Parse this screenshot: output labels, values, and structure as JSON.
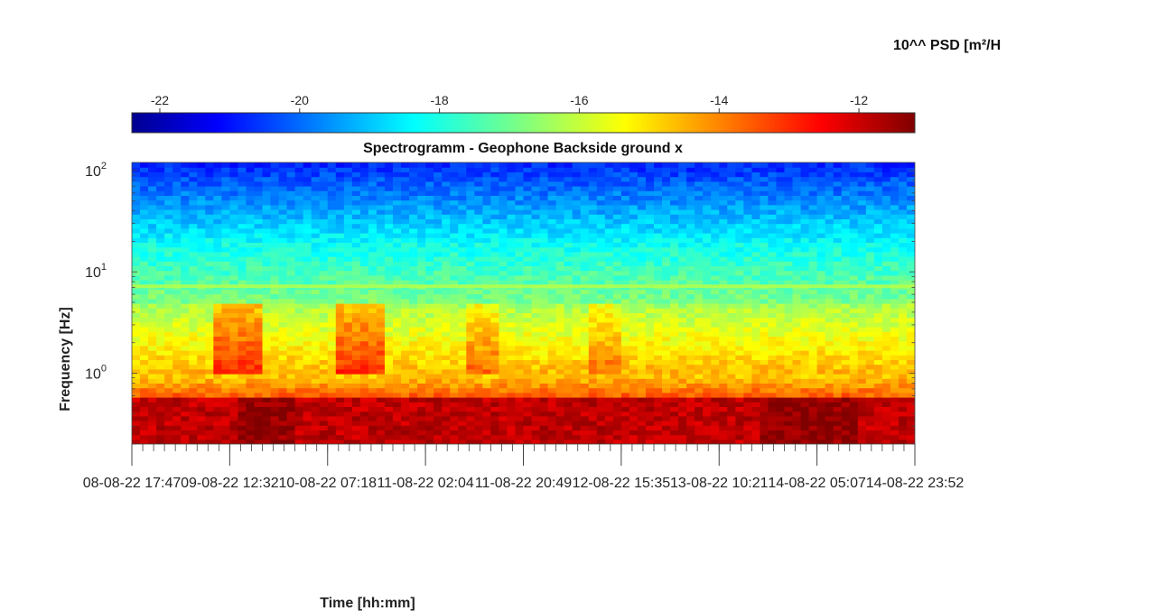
{
  "chart_data": {
    "type": "heatmap",
    "title": "Spectrogramm - Geophone Backside ground x",
    "xlabel": "Time [hh:mm]",
    "ylabel": "Frequency [Hz]",
    "y_scale": "log",
    "ylim": [
      0.2,
      120
    ],
    "y_ticks": [
      {
        "base": "10",
        "exp": "0",
        "value": 1
      },
      {
        "base": "10",
        "exp": "1",
        "value": 10
      },
      {
        "base": "10",
        "exp": "2",
        "value": 100
      }
    ],
    "x_tick_labels": [
      "08-08-22  17:47",
      "09-08-22  12:32",
      "10-08-22  07:18",
      "11-08-22  02:04",
      "11-08-22  20:49",
      "12-08-22  15:35",
      "13-08-22  10:21",
      "14-08-22  05:07",
      "14-08-22  23:52"
    ],
    "colorbar": {
      "title": "10^^ PSD [m²/H",
      "range": [
        -22.4,
        -11.2
      ],
      "ticks": [
        -22,
        -20,
        -18,
        -16,
        -14,
        -12
      ],
      "colormap": "jet"
    },
    "grid": false,
    "description_of_levels": {
      "band_0p2_to_0p6_Hz": -12,
      "band_0p6_to_1_Hz": -13.5,
      "band_1_to_5_Hz": -15.5,
      "line_7_Hz": -16.5,
      "band_10_Hz": -17.8,
      "band_50_to_120_Hz": -20.5
    }
  }
}
